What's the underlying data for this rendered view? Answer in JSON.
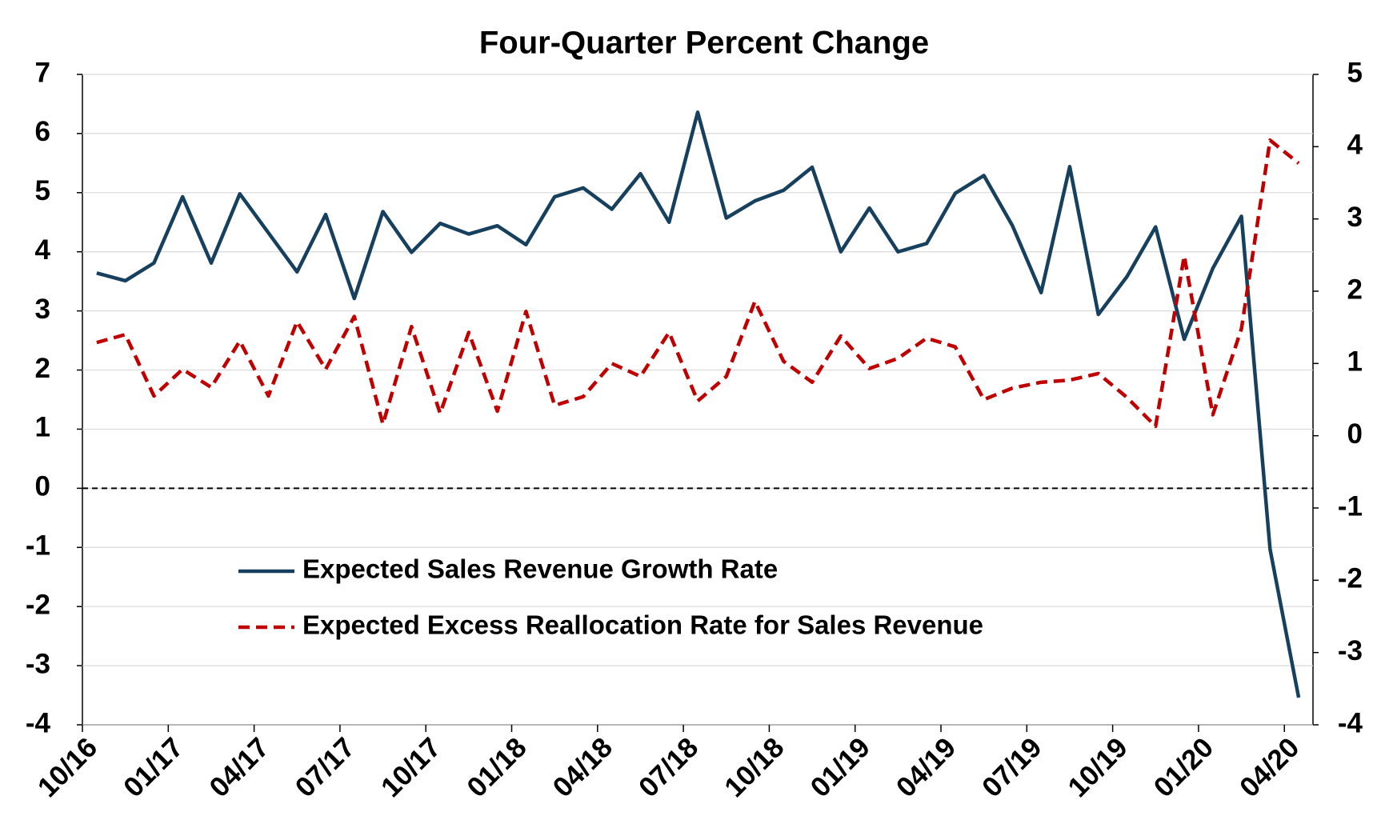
{
  "chart_data": {
    "type": "line",
    "title": "Four-Quarter Percent Change",
    "categories": [
      "10/16",
      null,
      null,
      "01/17",
      null,
      null,
      "04/17",
      null,
      null,
      "07/17",
      null,
      null,
      "10/17",
      null,
      null,
      "01/18",
      null,
      null,
      "04/18",
      null,
      null,
      "07/18",
      null,
      null,
      "10/18",
      null,
      null,
      "01/19",
      null,
      null,
      "04/19",
      null,
      null,
      "07/19",
      null,
      null,
      "10/19",
      null,
      null,
      "01/20",
      null,
      null,
      "04/20"
    ],
    "series": [
      {
        "name": "Expected Sales Revenue Growth Rate",
        "color": "#17405e",
        "dash": false,
        "values": [
          3.64,
          3.51,
          3.81,
          4.93,
          3.81,
          4.98,
          4.32,
          3.66,
          4.63,
          3.21,
          4.68,
          3.99,
          4.48,
          4.3,
          4.44,
          4.12,
          4.93,
          5.08,
          4.72,
          5.32,
          4.5,
          6.36,
          4.57,
          4.86,
          5.04,
          5.43,
          4.0,
          4.74,
          4.0,
          4.14,
          4.99,
          5.29,
          4.44,
          3.31,
          5.44,
          2.94,
          3.58,
          4.42,
          2.52,
          3.72,
          4.6,
          -1.03,
          -3.54
        ]
      },
      {
        "name": "Expected Excess Reallocation Rate for Sales Revenue",
        "color": "#c00000",
        "dash": true,
        "axis": "y2",
        "values": [
          1.29,
          1.4,
          0.55,
          0.92,
          0.67,
          1.31,
          0.55,
          1.58,
          0.92,
          1.65,
          0.16,
          1.51,
          0.31,
          1.43,
          0.34,
          1.72,
          0.42,
          0.54,
          1.0,
          0.82,
          1.43,
          0.48,
          0.82,
          1.86,
          1.03,
          0.74,
          1.38,
          0.93,
          1.07,
          1.35,
          1.23,
          0.5,
          0.66,
          0.74,
          0.77,
          0.86,
          0.53,
          0.13,
          2.49,
          0.29,
          1.48,
          4.09,
          3.77
        ]
      }
    ],
    "ylim": [
      -4,
      7
    ],
    "yticks": [
      -4,
      -3,
      -2,
      -1,
      0,
      1,
      2,
      3,
      4,
      5,
      6,
      7
    ],
    "y2lim": [
      -4,
      5
    ],
    "y2ticks": [
      -4,
      -3,
      -2,
      -1,
      0,
      1,
      2,
      3,
      4,
      5
    ],
    "zero_line": 0
  }
}
